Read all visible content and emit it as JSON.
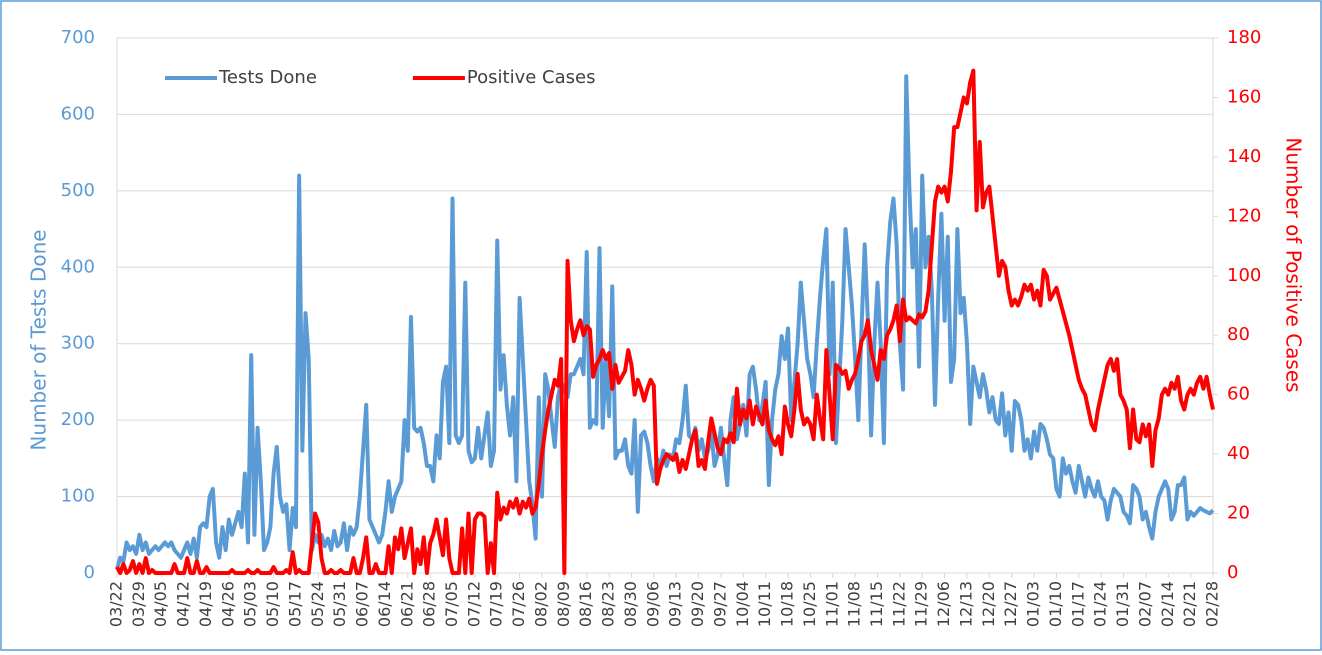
{
  "chart_data": {
    "type": "line",
    "y_label": "Number of Tests Done",
    "y2_label": "Number of Positive Cases",
    "ylim": [
      0,
      700
    ],
    "yticks": [
      0,
      100,
      200,
      300,
      400,
      500,
      600,
      700
    ],
    "y2lim": [
      0,
      180
    ],
    "y2ticks": [
      0,
      20,
      40,
      60,
      80,
      100,
      120,
      140,
      160,
      180
    ],
    "grid": true,
    "legend": "upper left",
    "categories": [
      "03/22",
      null,
      null,
      null,
      null,
      null,
      null,
      "03/29",
      null,
      null,
      null,
      null,
      null,
      null,
      "04/05",
      null,
      null,
      null,
      null,
      null,
      null,
      "04/12",
      null,
      null,
      null,
      null,
      null,
      null,
      "04/19",
      null,
      null,
      null,
      null,
      null,
      null,
      "04/26",
      null,
      null,
      null,
      null,
      null,
      null,
      "05/03",
      null,
      null,
      null,
      null,
      null,
      null,
      "05/10",
      null,
      null,
      null,
      null,
      null,
      null,
      "05/17",
      null,
      null,
      null,
      null,
      null,
      null,
      "05/24",
      null,
      null,
      null,
      null,
      null,
      null,
      "05/31",
      null,
      null,
      null,
      null,
      null,
      null,
      "06/07",
      null,
      null,
      null,
      null,
      null,
      null,
      "06/14",
      null,
      null,
      null,
      null,
      null,
      null,
      "06/21",
      null,
      null,
      null,
      null,
      null,
      null,
      "06/28",
      null,
      null,
      null,
      null,
      null,
      null,
      "07/05",
      null,
      null,
      null,
      null,
      null,
      null,
      "07/12",
      null,
      null,
      null,
      null,
      null,
      null,
      "07/19",
      null,
      null,
      null,
      null,
      null,
      null,
      "07/26",
      null,
      null,
      null,
      null,
      null,
      null,
      "08/02",
      null,
      null,
      null,
      null,
      null,
      null,
      "08/09",
      null,
      null,
      null,
      null,
      null,
      null,
      "08/16",
      null,
      null,
      null,
      null,
      null,
      null,
      "08/23",
      null,
      null,
      null,
      null,
      null,
      null,
      "08/30",
      null,
      null,
      null,
      null,
      null,
      null,
      "09/06",
      null,
      null,
      null,
      null,
      null,
      null,
      "09/13",
      null,
      null,
      null,
      null,
      null,
      null,
      "09/20",
      null,
      null,
      null,
      null,
      null,
      null,
      "09/27",
      null,
      null,
      null,
      null,
      null,
      null,
      "10/04",
      null,
      null,
      null,
      null,
      null,
      null,
      "10/11",
      null,
      null,
      null,
      null,
      null,
      null,
      "10/18",
      null,
      null,
      null,
      null,
      null,
      null,
      "10/25",
      null,
      null,
      null,
      null,
      null,
      null,
      "11/01",
      null,
      null,
      null,
      null,
      null,
      null,
      "11/08",
      null,
      null,
      null,
      null,
      null,
      null,
      "11/15",
      null,
      null,
      null,
      null,
      null,
      null,
      "11/22",
      null,
      null,
      null,
      null,
      null,
      null,
      "11/29",
      null,
      null,
      null,
      null,
      null,
      null,
      "12/06",
      null,
      null,
      null,
      null,
      null,
      null,
      "12/13",
      null,
      null,
      null,
      null,
      null,
      null,
      "12/20",
      null,
      null,
      null,
      null,
      null,
      null,
      "12/27",
      null,
      null,
      null,
      null,
      null,
      null,
      "01/03",
      null,
      null,
      null,
      null,
      null,
      null,
      "01/10",
      null,
      null,
      null,
      null,
      null,
      null,
      "01/17",
      null,
      null,
      null,
      null,
      null,
      null,
      "01/24",
      null,
      null,
      null,
      null,
      null,
      null,
      "01/31",
      null,
      null,
      null,
      null,
      null,
      null,
      "02/07",
      null,
      null,
      null,
      null,
      null,
      null,
      "02/14",
      null,
      null,
      null,
      null,
      null,
      null,
      "02/21",
      null,
      null,
      null,
      null,
      null,
      null,
      "02/28"
    ],
    "series": [
      {
        "name": "Tests Done",
        "color": "#5b9bd5",
        "values": [
          5,
          20,
          15,
          40,
          30,
          35,
          25,
          50,
          30,
          40,
          25,
          30,
          35,
          30,
          35,
          40,
          35,
          40,
          30,
          25,
          20,
          30,
          40,
          25,
          45,
          20,
          60,
          65,
          60,
          100,
          110,
          40,
          20,
          60,
          30,
          70,
          50,
          65,
          80,
          60,
          130,
          40,
          285,
          50,
          190,
          120,
          30,
          40,
          60,
          130,
          165,
          100,
          80,
          90,
          30,
          85,
          60,
          520,
          160,
          340,
          280,
          30,
          50,
          40,
          50,
          35,
          45,
          30,
          55,
          35,
          40,
          65,
          30,
          60,
          50,
          60,
          100,
          160,
          220,
          70,
          60,
          50,
          40,
          50,
          80,
          120,
          80,
          100,
          110,
          120,
          200,
          160,
          335,
          190,
          185,
          190,
          170,
          140,
          140,
          120,
          180,
          150,
          250,
          270,
          170,
          490,
          180,
          170,
          180,
          380,
          160,
          145,
          150,
          190,
          150,
          180,
          210,
          140,
          160,
          435,
          240,
          285,
          220,
          180,
          230,
          120,
          360,
          280,
          200,
          120,
          90,
          45,
          230,
          100,
          260,
          240,
          200,
          165,
          230,
          250,
          240,
          230,
          260,
          260,
          270,
          280,
          260,
          420,
          190,
          200,
          195,
          425,
          190,
          280,
          205,
          375,
          150,
          160,
          160,
          175,
          140,
          130,
          200,
          80,
          180,
          185,
          170,
          140,
          120,
          150,
          140,
          160,
          140,
          155,
          150,
          175,
          170,
          200,
          245,
          180,
          175,
          190,
          160,
          175,
          150,
          160,
          185,
          140,
          155,
          190,
          150,
          115,
          200,
          230,
          175,
          195,
          220,
          180,
          260,
          270,
          240,
          200,
          220,
          250,
          115,
          200,
          240,
          260,
          310,
          280,
          320,
          200,
          250,
          300,
          380,
          330,
          280,
          260,
          230,
          300,
          360,
          410,
          450,
          260,
          380,
          170,
          250,
          330,
          450,
          400,
          350,
          280,
          200,
          320,
          430,
          330,
          180,
          300,
          380,
          300,
          170,
          400,
          460,
          490,
          430,
          300,
          240,
          650,
          500,
          400,
          450,
          270,
          520,
          400,
          440,
          370,
          220,
          360,
          470,
          330,
          440,
          250,
          280,
          450,
          340,
          360,
          300,
          195,
          270,
          250,
          230,
          260,
          240,
          210,
          230,
          200,
          195,
          235,
          180,
          210,
          160,
          225,
          220,
          200,
          160,
          175,
          150,
          185,
          160,
          195,
          190,
          175,
          155,
          150,
          110,
          100,
          150,
          130,
          140,
          120,
          105,
          140,
          120,
          100,
          125,
          110,
          100,
          120,
          100,
          95,
          70,
          95,
          110,
          105,
          100,
          80,
          75,
          65,
          115,
          110,
          100,
          70,
          80,
          60,
          45,
          80,
          100,
          110,
          120,
          110,
          70,
          80,
          115,
          115,
          125,
          70,
          80,
          75,
          80,
          85,
          82,
          80,
          78,
          82
        ]
      },
      {
        "name": "Positive Cases",
        "color": "#ff0000",
        "axis": "y2",
        "values": [
          2,
          0,
          3,
          0,
          1,
          4,
          0,
          3,
          0,
          5,
          0,
          1,
          0,
          0,
          0,
          0,
          0,
          0,
          3,
          0,
          0,
          0,
          5,
          0,
          0,
          4,
          0,
          0,
          2,
          0,
          0,
          0,
          0,
          0,
          0,
          0,
          1,
          0,
          0,
          0,
          0,
          1,
          0,
          0,
          1,
          0,
          0,
          0,
          0,
          2,
          0,
          0,
          0,
          1,
          0,
          7,
          0,
          1,
          0,
          0,
          0,
          10,
          20,
          17,
          5,
          0,
          0,
          1,
          0,
          0,
          1,
          0,
          0,
          0,
          5,
          0,
          0,
          5,
          12,
          0,
          0,
          3,
          0,
          0,
          0,
          9,
          0,
          12,
          8,
          15,
          5,
          10,
          15,
          0,
          8,
          3,
          12,
          0,
          10,
          13,
          18,
          12,
          6,
          18,
          5,
          0,
          0,
          0,
          15,
          0,
          20,
          0,
          18,
          20,
          20,
          19,
          0,
          10,
          0,
          27,
          18,
          22,
          20,
          24,
          22,
          25,
          20,
          24,
          22,
          25,
          20,
          22,
          30,
          40,
          48,
          55,
          60,
          65,
          63,
          72,
          0,
          105,
          85,
          78,
          82,
          85,
          80,
          83,
          82,
          66,
          70,
          72,
          75,
          72,
          74,
          62,
          70,
          64,
          66,
          68,
          75,
          70,
          60,
          65,
          62,
          58,
          62,
          65,
          63,
          30,
          35,
          38,
          40,
          39,
          38,
          40,
          34,
          38,
          35,
          40,
          45,
          48,
          36,
          38,
          35,
          44,
          52,
          47,
          42,
          40,
          45,
          44,
          47,
          44,
          62,
          50,
          55,
          52,
          58,
          50,
          56,
          53,
          50,
          58,
          48,
          45,
          43,
          46,
          40,
          56,
          50,
          46,
          55,
          67,
          55,
          50,
          52,
          50,
          45,
          60,
          52,
          45,
          75,
          60,
          45,
          70,
          69,
          67,
          68,
          62,
          65,
          67,
          72,
          78,
          80,
          85,
          75,
          70,
          65,
          75,
          72,
          80,
          82,
          85,
          90,
          78,
          92,
          85,
          86,
          85,
          84,
          87,
          86,
          88,
          95,
          110,
          125,
          130,
          128,
          130,
          125,
          135,
          150,
          150,
          155,
          160,
          158,
          165,
          169,
          122,
          145,
          123,
          128,
          130,
          120,
          110,
          100,
          105,
          103,
          95,
          90,
          92,
          90,
          93,
          97,
          95,
          97,
          92,
          95,
          90,
          102,
          100,
          92,
          94,
          96,
          92,
          88,
          84,
          80,
          75,
          70,
          65,
          62,
          60,
          55,
          50,
          48,
          55,
          60,
          65,
          70,
          72,
          68,
          72,
          60,
          58,
          55,
          42,
          55,
          45,
          44,
          50,
          46,
          50,
          36,
          48,
          52,
          60,
          62,
          60,
          64,
          62,
          66,
          58,
          55,
          60,
          62,
          60,
          64,
          66,
          62,
          66,
          60,
          55
        ]
      }
    ]
  }
}
